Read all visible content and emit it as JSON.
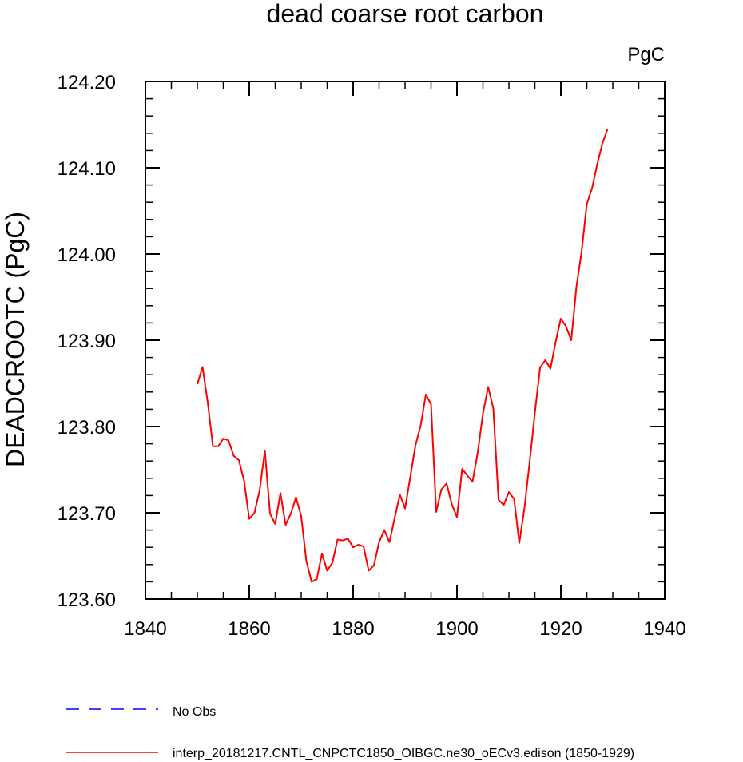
{
  "chart_data": {
    "type": "line",
    "title": "dead coarse root carbon",
    "units": "PgC",
    "xlabel": "",
    "ylabel": "DEADCROOTC  (PgC)",
    "xlim": [
      1840,
      1940
    ],
    "ylim": [
      123.6,
      124.2
    ],
    "x_ticks": [
      1840,
      1860,
      1880,
      1900,
      1920,
      1940
    ],
    "x_tick_labels": [
      "1840",
      "1860",
      "1880",
      "1900",
      "1920",
      "1940"
    ],
    "y_ticks": [
      123.6,
      123.7,
      123.8,
      123.9,
      124.0,
      124.1,
      124.2
    ],
    "y_tick_labels": [
      "123.60",
      "123.70",
      "123.80",
      "123.90",
      "124.00",
      "124.10",
      "124.20"
    ],
    "grid": false,
    "legend_position": "bottom",
    "legend": [
      {
        "label": "No Obs",
        "color": "#0000ff",
        "style": "dashed"
      },
      {
        "label": "interp_20181217.CNTL_CNPCTC1850_OIBGC.ne30_oECv3.edison (1850-1929)",
        "color": "#ff0000",
        "style": "solid"
      }
    ],
    "series": [
      {
        "color": "#ff0000",
        "x": [
          1850,
          1851,
          1852,
          1853,
          1854,
          1855,
          1856,
          1857,
          1858,
          1859,
          1860,
          1861,
          1862,
          1863,
          1864,
          1865,
          1866,
          1867,
          1868,
          1869,
          1870,
          1871,
          1872,
          1873,
          1874,
          1875,
          1876,
          1877,
          1878,
          1879,
          1880,
          1881,
          1882,
          1883,
          1884,
          1885,
          1886,
          1887,
          1888,
          1889,
          1890,
          1891,
          1892,
          1893,
          1894,
          1895,
          1896,
          1897,
          1898,
          1899,
          1900,
          1901,
          1902,
          1903,
          1904,
          1905,
          1906,
          1907,
          1908,
          1909,
          1910,
          1911,
          1912,
          1913,
          1914,
          1915,
          1916,
          1917,
          1918,
          1919,
          1920,
          1921,
          1922,
          1923,
          1924,
          1925,
          1926,
          1927,
          1928,
          1929
        ],
        "values": [
          123.849,
          123.869,
          123.828,
          123.777,
          123.777,
          123.786,
          123.784,
          123.766,
          123.761,
          123.737,
          123.693,
          123.7,
          123.726,
          123.772,
          123.699,
          123.687,
          123.723,
          123.686,
          123.699,
          123.718,
          123.696,
          123.644,
          123.62,
          123.623,
          123.653,
          123.633,
          123.642,
          123.669,
          123.668,
          123.67,
          123.66,
          123.663,
          123.661,
          123.633,
          123.639,
          123.666,
          123.68,
          123.666,
          123.694,
          123.721,
          123.705,
          123.741,
          123.778,
          123.801,
          123.837,
          123.826,
          123.701,
          123.727,
          123.734,
          123.71,
          123.695,
          123.751,
          123.743,
          123.736,
          123.77,
          123.815,
          123.846,
          123.821,
          123.715,
          123.709,
          123.724,
          123.716,
          123.665,
          123.706,
          123.759,
          123.816,
          123.868,
          123.877,
          123.867,
          123.898,
          123.925,
          123.916,
          123.9,
          123.962,
          124.003,
          124.058,
          124.076,
          124.104,
          124.128,
          124.145
        ]
      }
    ]
  }
}
